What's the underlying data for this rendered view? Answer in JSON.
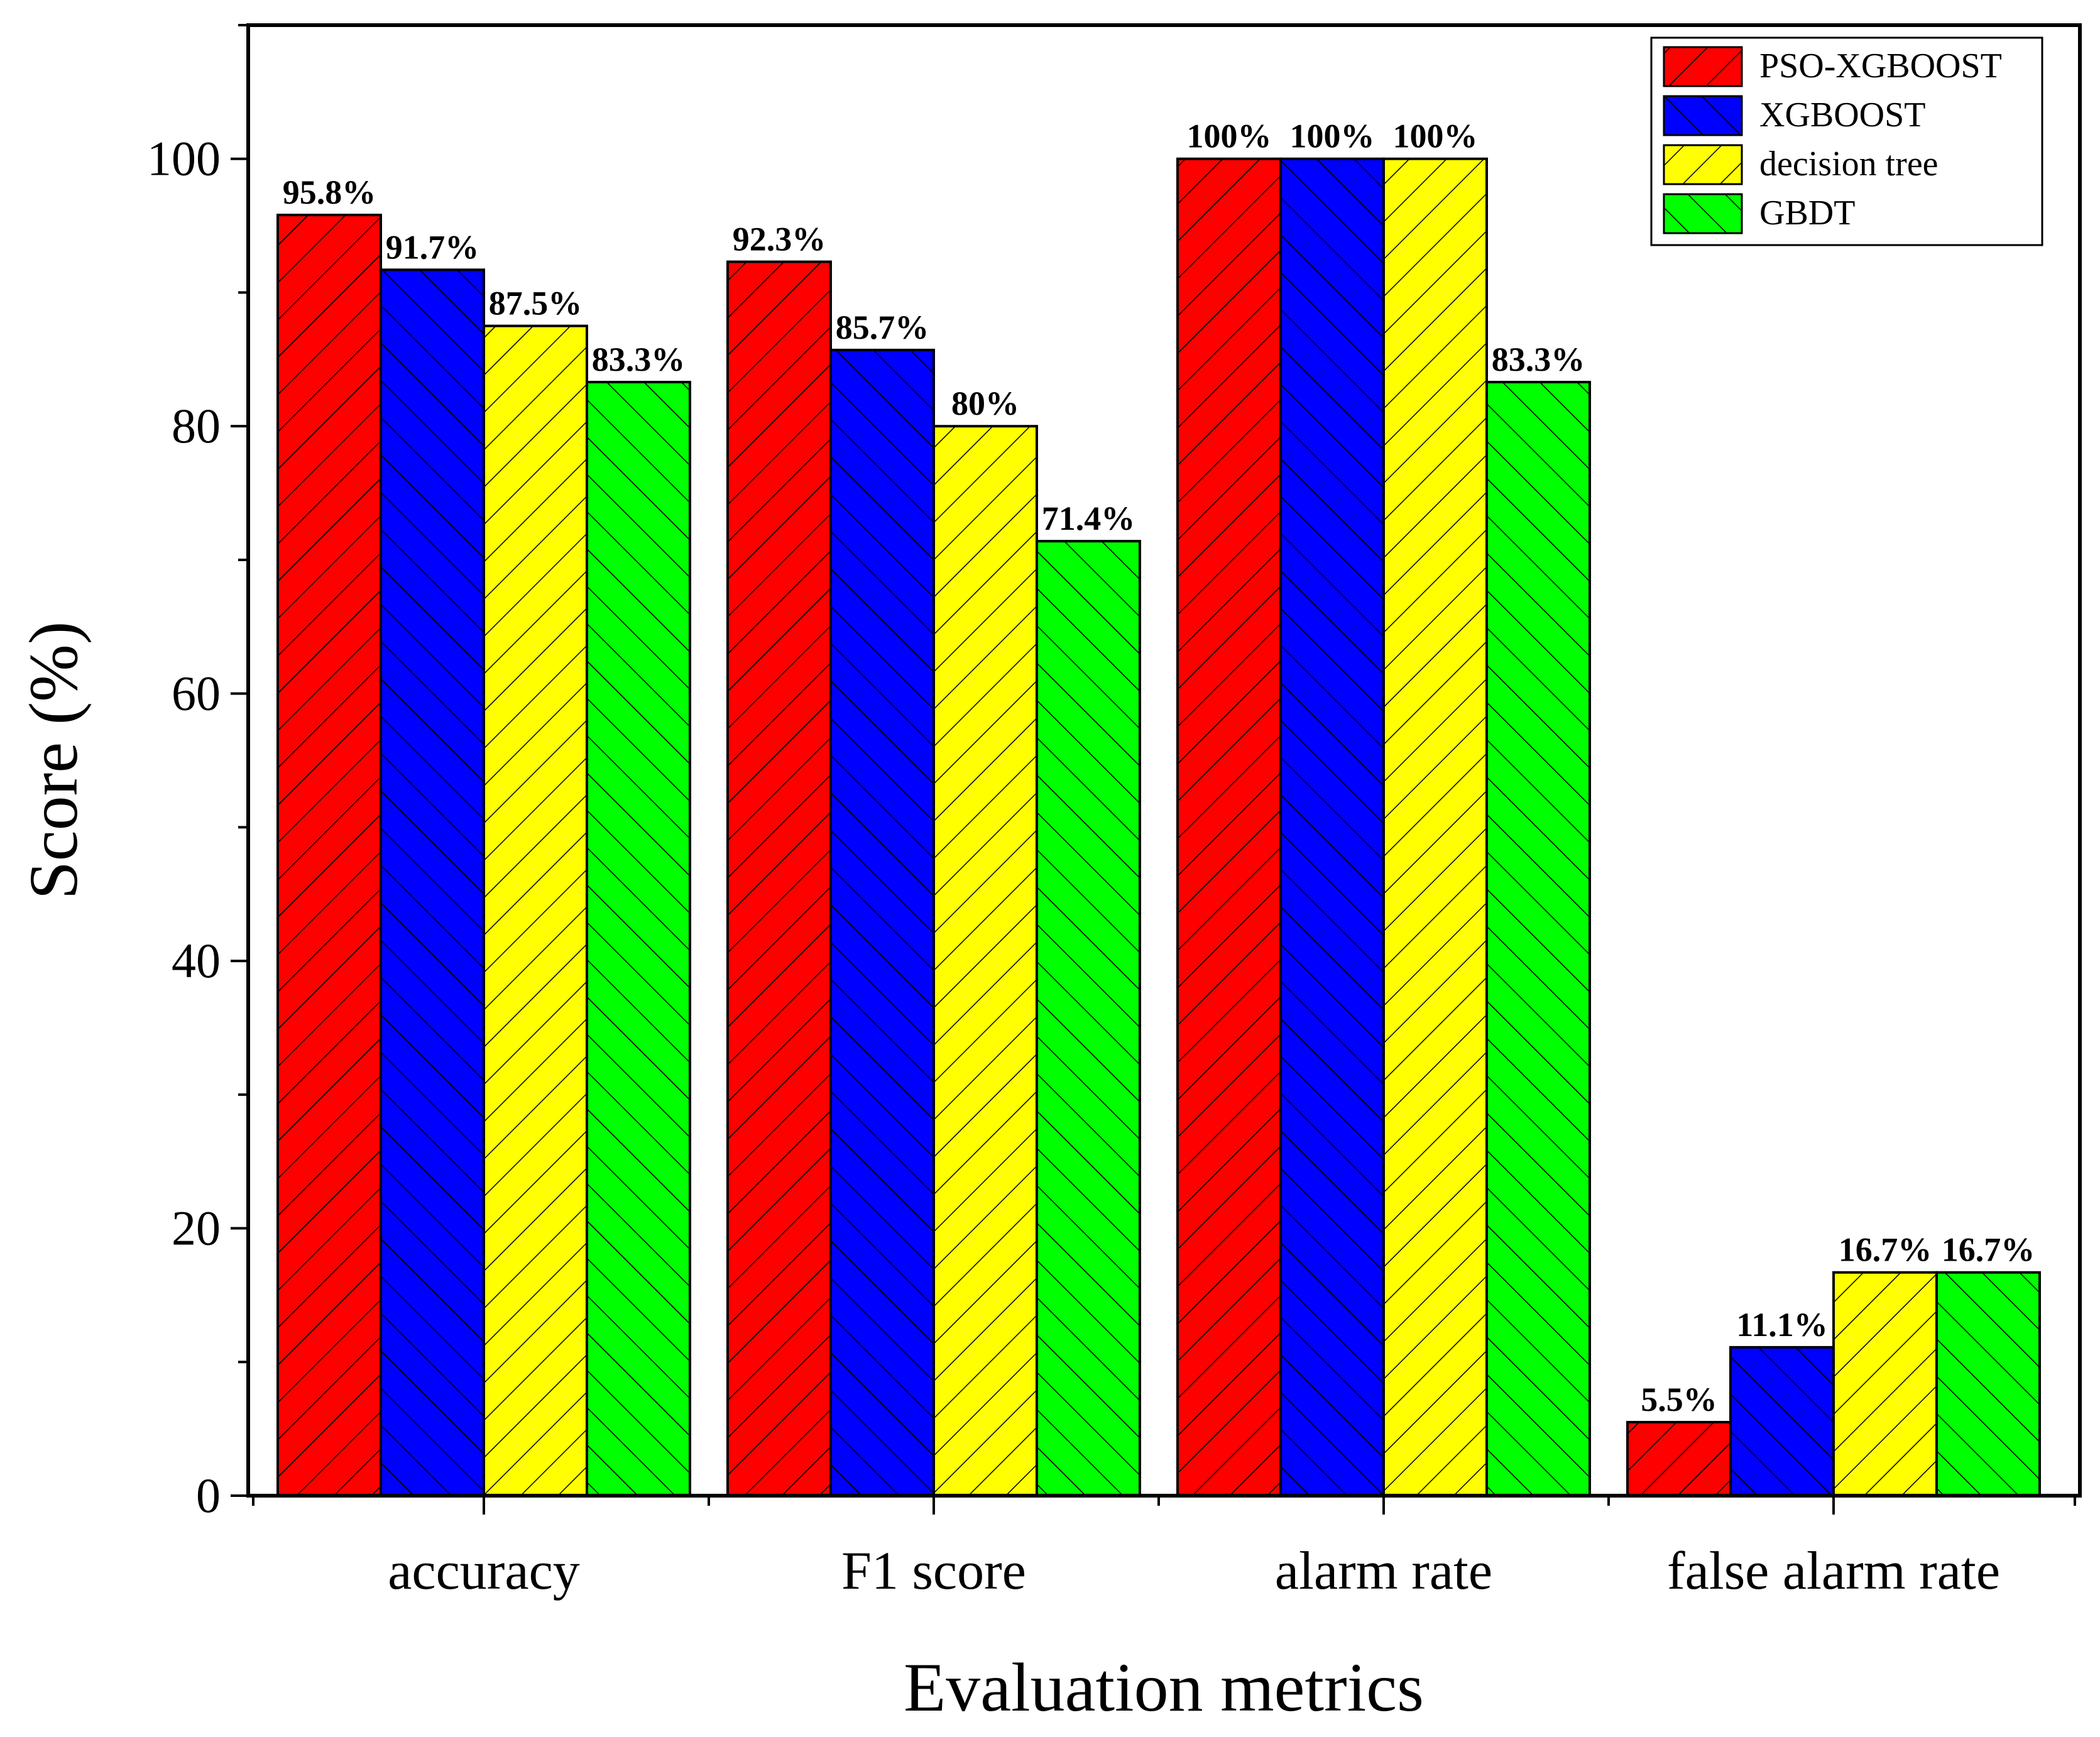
{
  "chart_data": {
    "type": "bar",
    "title": "",
    "xlabel": "Evaluation metrics",
    "ylabel": "Score (%)",
    "ylim": [
      0,
      110
    ],
    "yticks": [
      0,
      20,
      40,
      60,
      80,
      100
    ],
    "grid": false,
    "legend_position": "top-right",
    "categories": [
      "accuracy",
      "F1 score",
      "alarm rate",
      "false alarm rate"
    ],
    "series": [
      {
        "name": "PSO-XGBOOST",
        "color": "#ff0000",
        "hatch": "forward",
        "values": [
          95.8,
          92.3,
          100,
          5.5
        ],
        "labels": [
          "95.8%",
          "92.3%",
          "100%",
          "5.5%"
        ]
      },
      {
        "name": "XGBOOST",
        "color": "#0000ff",
        "hatch": "back",
        "values": [
          91.7,
          85.7,
          100,
          11.1
        ],
        "labels": [
          "91.7%",
          "85.7%",
          "100%",
          "11.1%"
        ]
      },
      {
        "name": "decision tree",
        "color": "#ffff00",
        "hatch": "forward",
        "values": [
          87.5,
          80,
          100,
          16.7
        ],
        "labels": [
          "87.5%",
          "80%",
          "100%",
          "16.7%"
        ]
      },
      {
        "name": "GBDT",
        "color": "#00ff00",
        "hatch": "back",
        "values": [
          83.3,
          71.4,
          83.3,
          16.7
        ],
        "labels": [
          "83.3%",
          "71.4%",
          "83.3%",
          "16.7%"
        ]
      }
    ]
  }
}
